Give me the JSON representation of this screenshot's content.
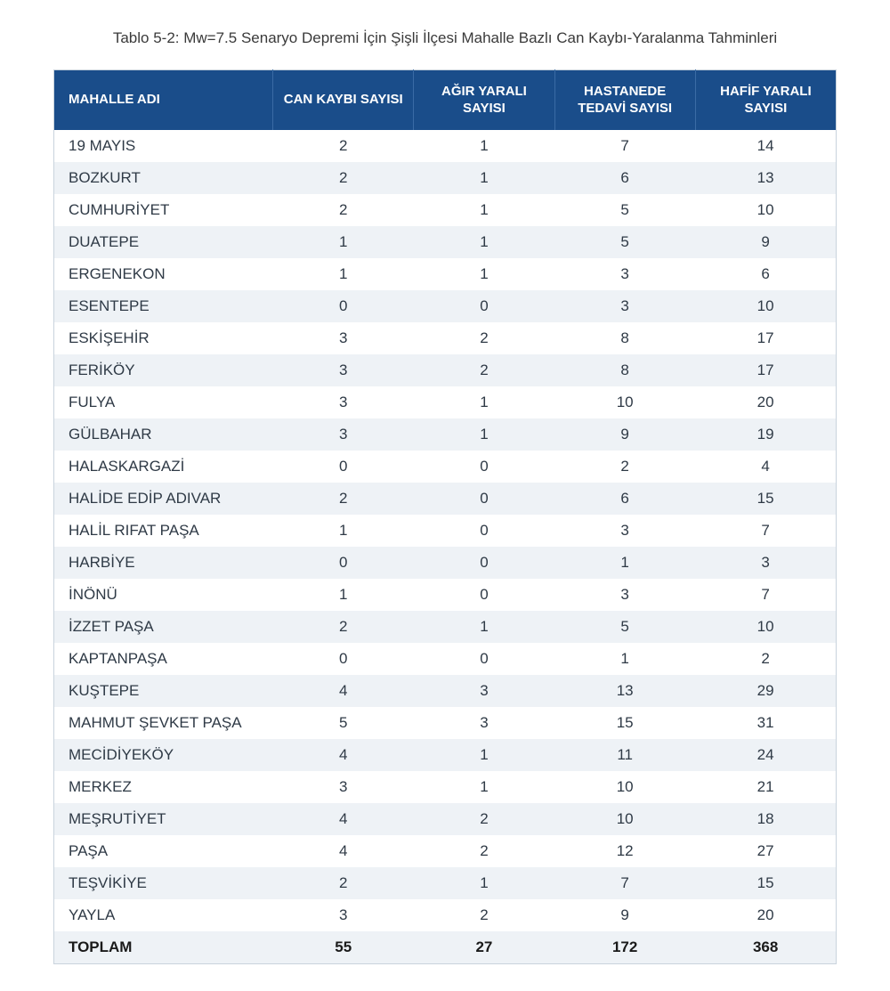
{
  "caption": "Tablo 5-2: Mw=7.5 Senaryo Depremi İçin Şişli İlçesi Mahalle Bazlı Can Kaybı-Yaralanma Tahminleri",
  "table": {
    "type": "table",
    "header_bg": "#1a4d8a",
    "header_fg": "#ffffff",
    "row_odd_bg": "#ffffff",
    "row_even_bg": "#eef2f6",
    "border_color": "#c9d3dd",
    "body_font_size": 17,
    "header_font_size": 15,
    "columns": [
      {
        "label": "MAHALLE ADI",
        "align": "left"
      },
      {
        "label": "CAN KAYBI SAYISI",
        "align": "center"
      },
      {
        "label": "AĞIR YARALI SAYISI",
        "align": "center"
      },
      {
        "label": "HASTANEDE TEDAVİ SAYISI",
        "align": "center"
      },
      {
        "label": "HAFİF YARALI SAYISI",
        "align": "center"
      }
    ],
    "rows": [
      [
        "19 MAYIS",
        "2",
        "1",
        "7",
        "14"
      ],
      [
        "BOZKURT",
        "2",
        "1",
        "6",
        "13"
      ],
      [
        "CUMHURİYET",
        "2",
        "1",
        "5",
        "10"
      ],
      [
        "DUATEPE",
        "1",
        "1",
        "5",
        "9"
      ],
      [
        "ERGENEKON",
        "1",
        "1",
        "3",
        "6"
      ],
      [
        "ESENTEPE",
        "0",
        "0",
        "3",
        "10"
      ],
      [
        "ESKİŞEHİR",
        "3",
        "2",
        "8",
        "17"
      ],
      [
        "FERİKÖY",
        "3",
        "2",
        "8",
        "17"
      ],
      [
        "FULYA",
        "3",
        "1",
        "10",
        "20"
      ],
      [
        "GÜLBAHAR",
        "3",
        "1",
        "9",
        "19"
      ],
      [
        "HALASKARGAZİ",
        "0",
        "0",
        "2",
        "4"
      ],
      [
        "HALİDE EDİP ADIVAR",
        "2",
        "0",
        "6",
        "15"
      ],
      [
        "HALİL RIFAT PAŞA",
        "1",
        "0",
        "3",
        "7"
      ],
      [
        "HARBİYE",
        "0",
        "0",
        "1",
        "3"
      ],
      [
        "İNÖNÜ",
        "1",
        "0",
        "3",
        "7"
      ],
      [
        "İZZET PAŞA",
        "2",
        "1",
        "5",
        "10"
      ],
      [
        "KAPTANPAŞA",
        "0",
        "0",
        "1",
        "2"
      ],
      [
        "KUŞTEPE",
        "4",
        "3",
        "13",
        "29"
      ],
      [
        "MAHMUT ŞEVKET PAŞA",
        "5",
        "3",
        "15",
        "31"
      ],
      [
        "MECİDİYEKÖY",
        "4",
        "1",
        "11",
        "24"
      ],
      [
        "MERKEZ",
        "3",
        "1",
        "10",
        "21"
      ],
      [
        "MEŞRUTİYET",
        "4",
        "2",
        "10",
        "18"
      ],
      [
        "PAŞA",
        "4",
        "2",
        "12",
        "27"
      ],
      [
        "TEŞVİKİYE",
        "2",
        "1",
        "7",
        "15"
      ],
      [
        "YAYLA",
        "3",
        "2",
        "9",
        "20"
      ]
    ],
    "total": {
      "label": "TOPLAM",
      "values": [
        "55",
        "27",
        "172",
        "368"
      ]
    }
  }
}
